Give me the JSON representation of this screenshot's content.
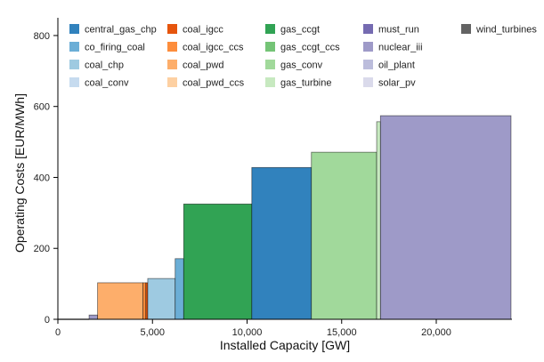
{
  "chart_data": {
    "type": "bar",
    "variant": "merit-order",
    "title": "",
    "xlabel": "Installed Capacity [GW]",
    "ylabel": "Operating Costs [EUR/MWh]",
    "xlim": [
      0,
      24000
    ],
    "ylim": [
      0,
      850
    ],
    "xticks": [
      {
        "value": 0,
        "label": "0"
      },
      {
        "value": 5000,
        "label": "5,000"
      },
      {
        "value": 10000,
        "label": "10,000"
      },
      {
        "value": 15000,
        "label": "15,000"
      },
      {
        "value": 20000,
        "label": "20,000"
      }
    ],
    "yticks": [
      {
        "value": 0,
        "label": "0"
      },
      {
        "value": 200,
        "label": "200"
      },
      {
        "value": 400,
        "label": "400"
      },
      {
        "value": 600,
        "label": "600"
      },
      {
        "value": 800,
        "label": "800"
      }
    ],
    "legend_position": "top",
    "legend": [
      {
        "name": "central_gas_chp",
        "color": "#3182bd"
      },
      {
        "name": "co_firing_coal",
        "color": "#6baed6"
      },
      {
        "name": "coal_chp",
        "color": "#9ecae1"
      },
      {
        "name": "coal_conv",
        "color": "#c6dbef"
      },
      {
        "name": "coal_igcc",
        "color": "#e6550d"
      },
      {
        "name": "coal_igcc_ccs",
        "color": "#fd8d3c"
      },
      {
        "name": "coal_pwd",
        "color": "#fdae6b"
      },
      {
        "name": "coal_pwd_ccs",
        "color": "#fdd0a2"
      },
      {
        "name": "gas_ccgt",
        "color": "#31a354"
      },
      {
        "name": "gas_ccgt_ccs",
        "color": "#74c476"
      },
      {
        "name": "gas_conv",
        "color": "#a1d99b"
      },
      {
        "name": "gas_turbine",
        "color": "#c7e9c0"
      },
      {
        "name": "must_run",
        "color": "#756bb1"
      },
      {
        "name": "nuclear_iii",
        "color": "#9e9ac8"
      },
      {
        "name": "oil_plant",
        "color": "#bcbddc"
      },
      {
        "name": "solar_pv",
        "color": "#dadaeb"
      },
      {
        "name": "wind_turbines",
        "color": "#636363"
      }
    ],
    "series": [
      {
        "name": "wind_turbines",
        "start": 0,
        "end": 1650,
        "value": 0
      },
      {
        "name": "nuclear_iii",
        "start": 1650,
        "end": 2100,
        "value": 12
      },
      {
        "name": "coal_pwd",
        "start": 2100,
        "end": 4500,
        "value": 103
      },
      {
        "name": "coal_igcc_ccs",
        "start": 4500,
        "end": 4650,
        "value": 103
      },
      {
        "name": "coal_igcc",
        "start": 4650,
        "end": 4750,
        "value": 103
      },
      {
        "name": "coal_chp",
        "start": 4750,
        "end": 6200,
        "value": 115
      },
      {
        "name": "co_firing_coal",
        "start": 6200,
        "end": 6650,
        "value": 171
      },
      {
        "name": "gas_ccgt",
        "start": 6650,
        "end": 10250,
        "value": 325
      },
      {
        "name": "central_gas_chp",
        "start": 10250,
        "end": 13400,
        "value": 428
      },
      {
        "name": "gas_conv",
        "start": 13400,
        "end": 16850,
        "value": 471
      },
      {
        "name": "gas_turbine",
        "start": 16850,
        "end": 17050,
        "value": 557
      },
      {
        "name": "nuclear_iii",
        "start": 17050,
        "end": 23950,
        "value": 574
      }
    ]
  }
}
